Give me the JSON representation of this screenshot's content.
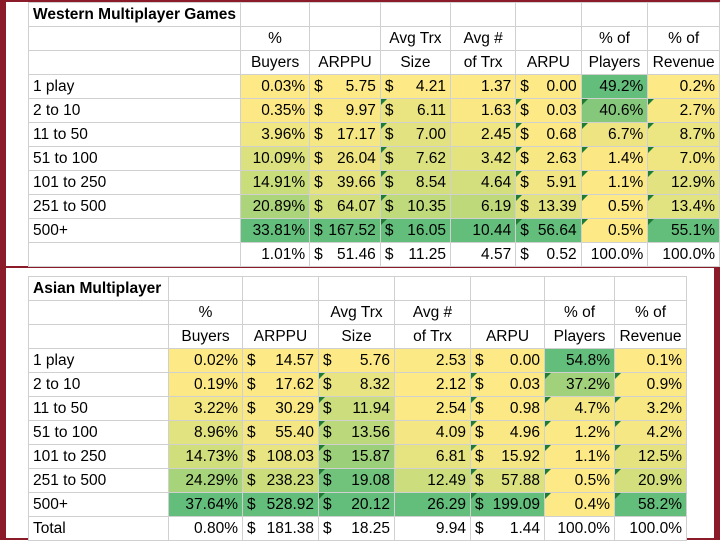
{
  "tables": [
    {
      "title": "Western Multiplayer Games",
      "header_top": [
        "",
        "%",
        "",
        "Avg Trx",
        "Avg #",
        "",
        "% of",
        "% of"
      ],
      "header_bottom": [
        "",
        "Buyers",
        "ARPPU",
        "Size",
        "of Trx",
        "ARPU",
        "Players",
        "Revenue"
      ],
      "rows": [
        {
          "label": "1 play",
          "buyers": "0.03%",
          "arppu": "5.75",
          "trx_size": "4.21",
          "num_trx": "1.37",
          "arpu": "0.00",
          "players": "49.2%",
          "revenue": "0.2%"
        },
        {
          "label": "2 to 10",
          "buyers": "0.35%",
          "arppu": "9.97",
          "trx_size": "6.11",
          "num_trx": "1.63",
          "arpu": "0.03",
          "players": "40.6%",
          "revenue": "2.7%"
        },
        {
          "label": "11 to 50",
          "buyers": "3.96%",
          "arppu": "17.17",
          "trx_size": "7.00",
          "num_trx": "2.45",
          "arpu": "0.68",
          "players": "6.7%",
          "revenue": "8.7%"
        },
        {
          "label": "51 to 100",
          "buyers": "10.09%",
          "arppu": "26.04",
          "trx_size": "7.62",
          "num_trx": "3.42",
          "arpu": "2.63",
          "players": "1.4%",
          "revenue": "7.0%"
        },
        {
          "label": "101 to 250",
          "buyers": "14.91%",
          "arppu": "39.66",
          "trx_size": "8.54",
          "num_trx": "4.64",
          "arpu": "5.91",
          "players": "1.1%",
          "revenue": "12.9%"
        },
        {
          "label": "251 to 500",
          "buyers": "20.89%",
          "arppu": "64.07",
          "trx_size": "10.35",
          "num_trx": "6.19",
          "arpu": "13.39",
          "players": "0.5%",
          "revenue": "13.4%"
        },
        {
          "label": "500+",
          "buyers": "33.81%",
          "arppu": "167.52",
          "trx_size": "16.05",
          "num_trx": "10.44",
          "arpu": "56.64",
          "players": "0.5%",
          "revenue": "55.1%"
        }
      ],
      "total": {
        "label": "",
        "buyers": "1.01%",
        "arppu": "51.46",
        "trx_size": "11.25",
        "num_trx": "4.57",
        "arpu": "0.52",
        "players": "100.0%",
        "revenue": "100.0%"
      }
    },
    {
      "title": "Asian Multiplayer",
      "header_top": [
        "",
        "%",
        "",
        "Avg Trx",
        "Avg #",
        "",
        "% of",
        "% of"
      ],
      "header_bottom": [
        "",
        "Buyers",
        "ARPPU",
        "Size",
        "of Trx",
        "ARPU",
        "Players",
        "Revenue"
      ],
      "rows": [
        {
          "label": "1 play",
          "buyers": "0.02%",
          "arppu": "14.57",
          "trx_size": "5.76",
          "num_trx": "2.53",
          "arpu": "0.00",
          "players": "54.8%",
          "revenue": "0.1%"
        },
        {
          "label": "2 to 10",
          "buyers": "0.19%",
          "arppu": "17.62",
          "trx_size": "8.32",
          "num_trx": "2.12",
          "arpu": "0.03",
          "players": "37.2%",
          "revenue": "0.9%"
        },
        {
          "label": "11 to 50",
          "buyers": "3.22%",
          "arppu": "30.29",
          "trx_size": "11.94",
          "num_trx": "2.54",
          "arpu": "0.98",
          "players": "4.7%",
          "revenue": "3.2%"
        },
        {
          "label": "51 to 100",
          "buyers": "8.96%",
          "arppu": "55.40",
          "trx_size": "13.56",
          "num_trx": "4.09",
          "arpu": "4.96",
          "players": "1.2%",
          "revenue": "4.2%"
        },
        {
          "label": "101 to 250",
          "buyers": "14.73%",
          "arppu": "108.03",
          "trx_size": "15.87",
          "num_trx": "6.81",
          "arpu": "15.92",
          "players": "1.1%",
          "revenue": "12.5%"
        },
        {
          "label": "251 to 500",
          "buyers": "24.29%",
          "arppu": "238.23",
          "trx_size": "19.08",
          "num_trx": "12.49",
          "arpu": "57.88",
          "players": "0.5%",
          "revenue": "20.9%"
        },
        {
          "label": "500+",
          "buyers": "37.64%",
          "arppu": "528.92",
          "trx_size": "20.12",
          "num_trx": "26.29",
          "arpu": "199.09",
          "players": "0.4%",
          "revenue": "58.2%"
        }
      ],
      "total": {
        "label": "Total",
        "buyers": "0.80%",
        "arppu": "181.38",
        "trx_size": "18.25",
        "num_trx": "9.94",
        "arpu": "1.44",
        "players": "100.0%",
        "revenue": "100.0%"
      }
    }
  ],
  "currency_symbol": "$",
  "colors": {
    "scale_low": "#fde985",
    "scale_mid": "#c3db7a",
    "scale_high": "#63be7b",
    "accent": "#8c1b2a"
  }
}
